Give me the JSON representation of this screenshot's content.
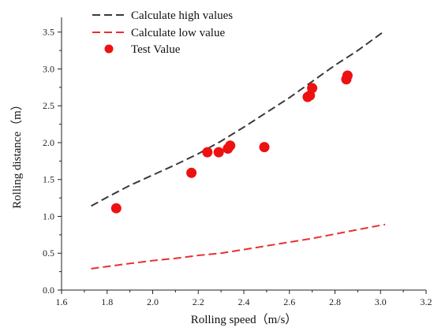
{
  "chart_data": {
    "type": "scatter",
    "xlabel": "Rolling speed（m/s）",
    "ylabel": "Rolling distance（m）",
    "xlim": [
      1.6,
      3.2
    ],
    "ylim": [
      0.0,
      3.7
    ],
    "xticks": [
      "1.6",
      "1.8",
      "2.0",
      "2.2",
      "2.4",
      "2.6",
      "2.8",
      "3.0",
      "3.2"
    ],
    "yticks": [
      "0.0",
      "0.5",
      "1.0",
      "1.5",
      "2.0",
      "2.5",
      "3.0",
      "3.5"
    ],
    "grid": false,
    "legend_position": "top-left",
    "series": [
      {
        "name": "Calculate high values",
        "kind": "dashed-line",
        "color": "#3a3a3a",
        "x": [
          1.73,
          1.8,
          1.9,
          2.0,
          2.1,
          2.2,
          2.3,
          2.4,
          2.5,
          2.6,
          2.7,
          2.8,
          2.9,
          3.02
        ],
        "y": [
          1.14,
          1.26,
          1.42,
          1.56,
          1.7,
          1.85,
          2.02,
          2.21,
          2.41,
          2.61,
          2.83,
          3.05,
          3.25,
          3.52
        ]
      },
      {
        "name": "Calculate low value",
        "kind": "dashed-line",
        "color": "#e8312f",
        "x": [
          1.73,
          1.8,
          1.9,
          2.0,
          2.1,
          2.2,
          2.3,
          2.4,
          2.5,
          2.6,
          2.7,
          2.8,
          2.9,
          3.02
        ],
        "y": [
          0.29,
          0.32,
          0.36,
          0.4,
          0.43,
          0.47,
          0.5,
          0.55,
          0.6,
          0.65,
          0.7,
          0.76,
          0.82,
          0.89
        ]
      },
      {
        "name": "Test Value",
        "kind": "markers",
        "color": "#ee1111",
        "x": [
          1.84,
          2.17,
          2.24,
          2.29,
          2.33,
          2.34,
          2.49,
          2.68,
          2.69,
          2.7,
          2.85,
          2.855
        ],
        "y": [
          1.11,
          1.59,
          1.87,
          1.87,
          1.92,
          1.96,
          1.94,
          2.62,
          2.64,
          2.74,
          2.86,
          2.91
        ]
      }
    ]
  }
}
